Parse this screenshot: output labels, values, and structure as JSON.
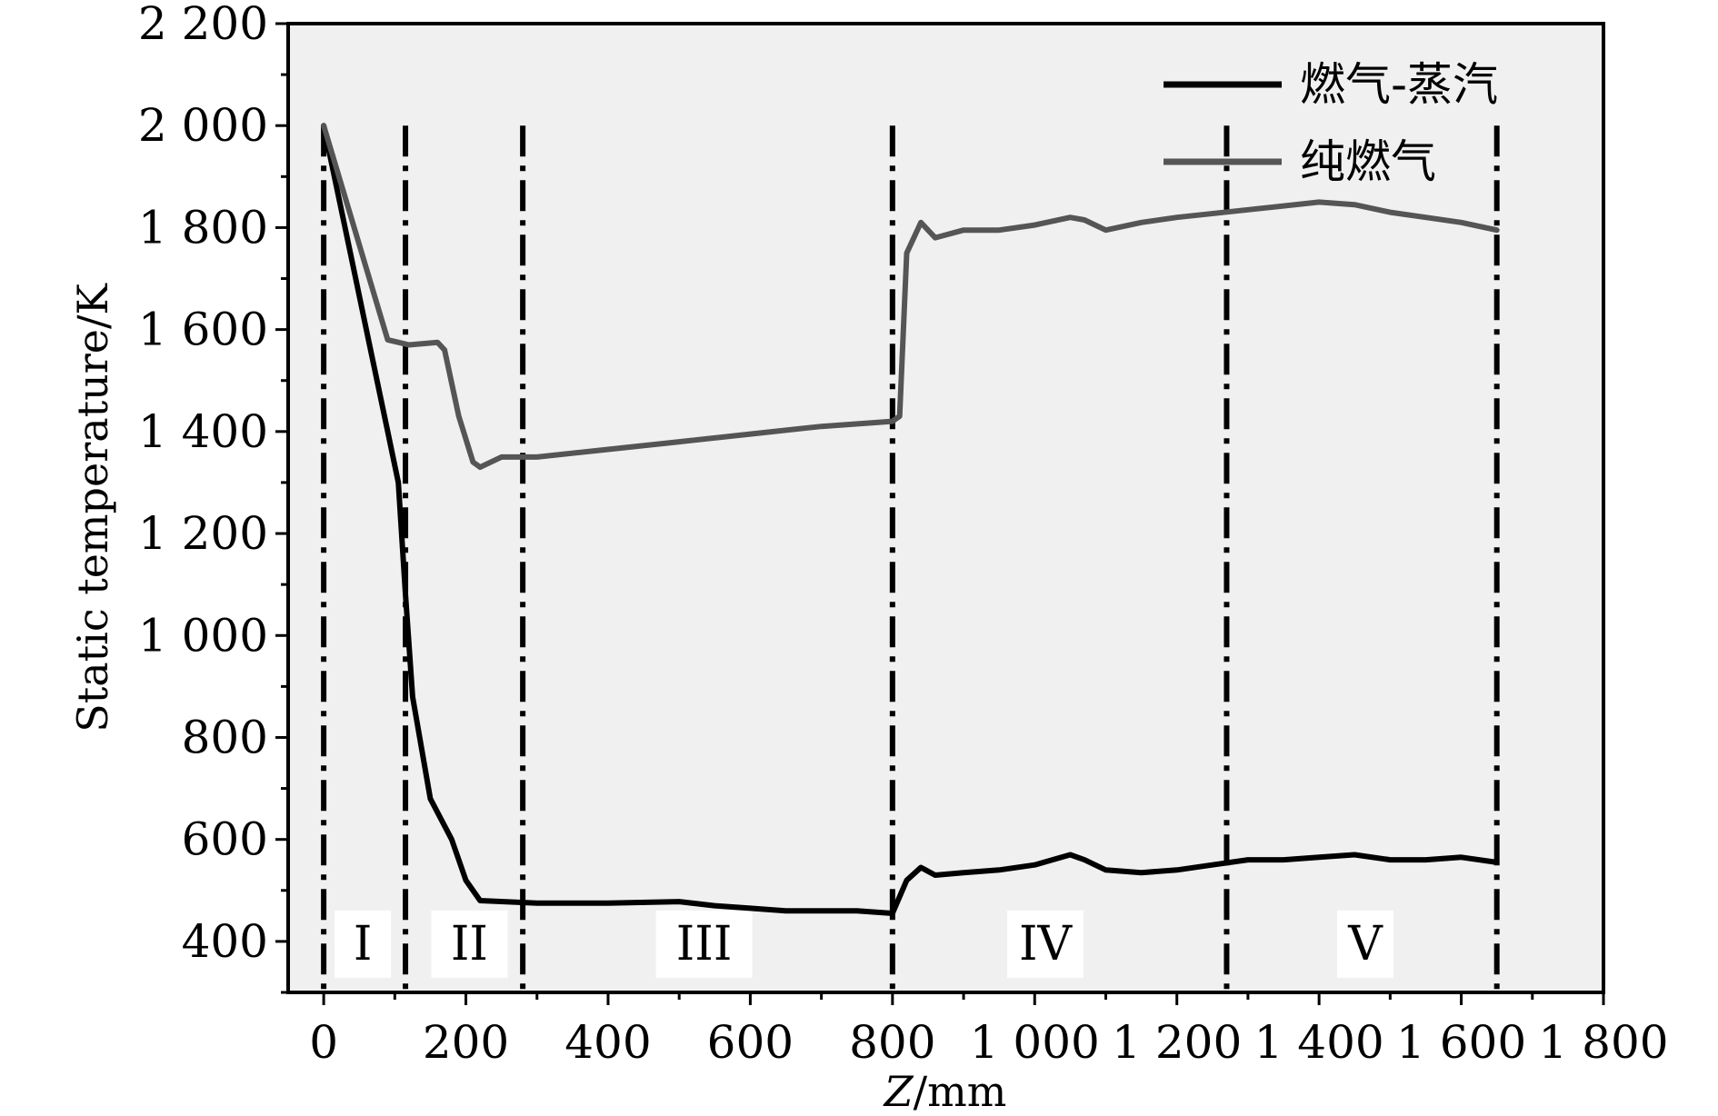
{
  "chart_data": {
    "type": "line",
    "xlabel_italic": "Z",
    "xlabel_rest": "/mm",
    "ylabel": "Static temperature/K",
    "xlim": [
      -50,
      1800
    ],
    "ylim": [
      300,
      2200
    ],
    "x_ticks": [
      0,
      200,
      400,
      600,
      800,
      1000,
      1200,
      1400,
      1600,
      1800
    ],
    "x_tick_labels": [
      "0",
      "200",
      "400",
      "600",
      "800",
      "1 000",
      "1 200",
      "1 400",
      "1 600",
      "1 800"
    ],
    "y_ticks": [
      400,
      600,
      800,
      1000,
      1200,
      1400,
      1600,
      1800,
      2000,
      2200
    ],
    "y_tick_labels": [
      "400",
      "600",
      "800",
      "1 000",
      "1 200",
      "1 400",
      "1 600",
      "1 800",
      "2 000",
      "2 200"
    ],
    "legend_position": "top-right",
    "series": [
      {
        "name": "燃气-蒸汽",
        "color": "#000000",
        "x": [
          0,
          30,
          60,
          90,
          105,
          115,
          125,
          150,
          180,
          200,
          220,
          300,
          400,
          500,
          550,
          600,
          650,
          700,
          750,
          800,
          820,
          840,
          860,
          900,
          950,
          1000,
          1050,
          1070,
          1100,
          1150,
          1200,
          1250,
          1300,
          1350,
          1400,
          1450,
          1500,
          1550,
          1600,
          1650
        ],
        "y": [
          2000,
          1800,
          1600,
          1400,
          1300,
          1080,
          880,
          680,
          600,
          520,
          480,
          475,
          475,
          478,
          470,
          465,
          460,
          460,
          460,
          455,
          520,
          545,
          530,
          535,
          540,
          550,
          570,
          560,
          540,
          535,
          540,
          550,
          560,
          560,
          565,
          570,
          560,
          560,
          565,
          555
        ]
      },
      {
        "name": "纯燃气",
        "color": "#555555",
        "x": [
          0,
          30,
          60,
          90,
          105,
          120,
          160,
          170,
          190,
          210,
          220,
          250,
          300,
          400,
          500,
          600,
          700,
          800,
          810,
          820,
          840,
          860,
          900,
          950,
          1000,
          1050,
          1070,
          1100,
          1150,
          1200,
          1300,
          1400,
          1450,
          1500,
          1550,
          1600,
          1650
        ],
        "y": [
          2000,
          1860,
          1720,
          1580,
          1575,
          1570,
          1575,
          1560,
          1430,
          1340,
          1330,
          1350,
          1350,
          1365,
          1380,
          1395,
          1410,
          1420,
          1430,
          1750,
          1810,
          1780,
          1795,
          1795,
          1805,
          1820,
          1815,
          1795,
          1810,
          1820,
          1835,
          1850,
          1845,
          1830,
          1820,
          1810,
          1795
        ]
      }
    ],
    "boundaries": [
      0,
      115,
      280,
      800,
      1270,
      1650
    ],
    "regions": [
      {
        "label": "I",
        "x": 55
      },
      {
        "label": "II",
        "x": 205
      },
      {
        "label": "III",
        "x": 535
      },
      {
        "label": "IV",
        "x": 1015
      },
      {
        "label": "V",
        "x": 1465
      }
    ]
  }
}
